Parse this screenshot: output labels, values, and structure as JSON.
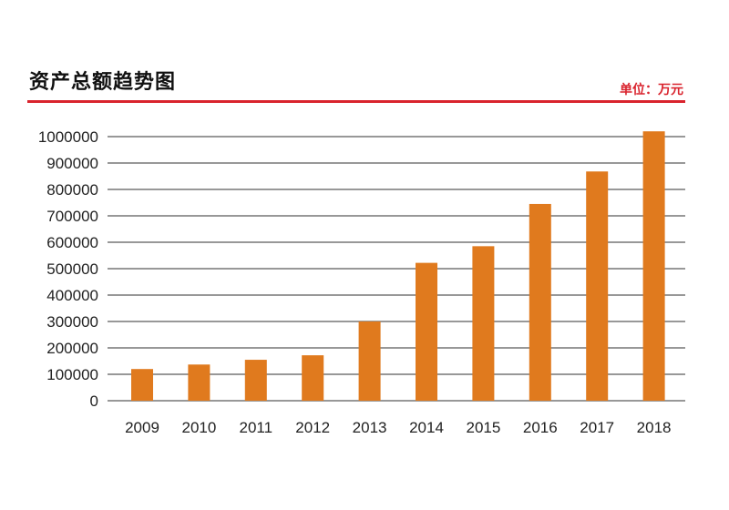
{
  "header": {
    "title": "资产总额趋势图",
    "unit": "单位：万元"
  },
  "colors": {
    "bar": "#e07a1e",
    "accent": "#d9232d",
    "grid": "#777777"
  },
  "chart_data": {
    "type": "bar",
    "title": "资产总额趋势图",
    "ylabel": "",
    "xlabel": "",
    "unit": "单位：万元",
    "categories": [
      "2009",
      "2010",
      "2011",
      "2012",
      "2013",
      "2014",
      "2015",
      "2016",
      "2017",
      "2018"
    ],
    "values": [
      120000,
      137000,
      155000,
      172000,
      300000,
      522000,
      585000,
      745000,
      868000,
      1020000
    ],
    "ylim": [
      0,
      1000000
    ],
    "yticks": [
      "0",
      "100000",
      "200000",
      "300000",
      "400000",
      "500000",
      "600000",
      "700000",
      "800000",
      "900000",
      "1000000"
    ],
    "grid": true,
    "legend": "none"
  }
}
